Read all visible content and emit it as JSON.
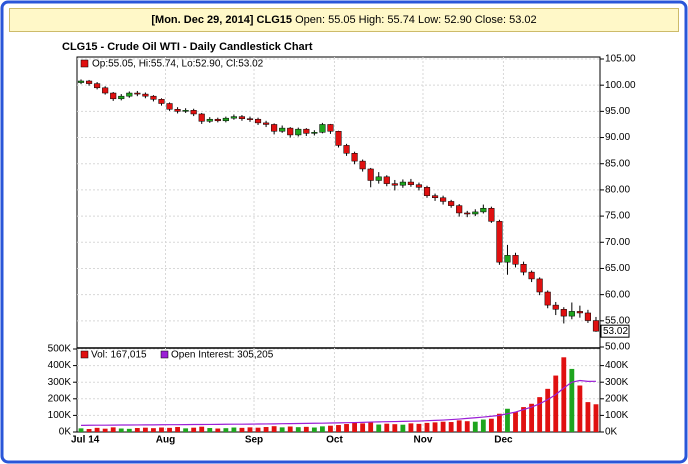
{
  "header": {
    "date": "[Mon. Dec 29, 2014]",
    "symbol": "CLG15",
    "quote": "Open: 55.05 High: 55.74 Low: 52.90 Close: 53.02"
  },
  "chart_data": [
    {
      "type": "candlestick",
      "title": "CLG15 - Crude Oil WTI - Daily Candlestick Chart",
      "legend": "Op:55.05, Hi:55.74, Lo:52.90, Cl:53.02",
      "up_color": "#1ea51e",
      "down_color": "#e01010",
      "grid": true,
      "categories": [
        "Jul 14",
        null,
        null,
        null,
        null,
        null,
        null,
        null,
        null,
        null,
        null,
        "Aug",
        null,
        null,
        null,
        null,
        null,
        null,
        null,
        null,
        null,
        null,
        "Sep",
        null,
        null,
        null,
        null,
        null,
        null,
        null,
        null,
        null,
        "Oct",
        null,
        null,
        null,
        null,
        null,
        null,
        null,
        null,
        null,
        null,
        "Nov",
        null,
        null,
        null,
        null,
        null,
        null,
        null,
        null,
        null,
        "Dec",
        null,
        null,
        null,
        null,
        null,
        null,
        null,
        null,
        null,
        null,
        null
      ],
      "open": [
        100.5,
        100.8,
        100.3,
        99.5,
        98.5,
        97.4,
        97.9,
        98.5,
        98.3,
        97.9,
        97.3,
        96.5,
        95.4,
        95.0,
        95.2,
        94.5,
        93.1,
        93.5,
        93.2,
        93.7,
        94.0,
        93.6,
        93.5,
        92.8,
        92.5,
        91.2,
        91.8,
        90.5,
        91.6,
        90.8,
        91.0,
        92.5,
        91.2,
        88.5,
        87.0,
        85.5,
        84.0,
        81.8,
        82.5,
        81.2,
        80.9,
        81.5,
        81.0,
        80.5,
        78.9,
        78.5,
        77.8,
        77.0,
        75.6,
        75.4,
        75.8,
        76.5,
        74.0,
        66.2,
        67.5,
        65.8,
        64.3,
        63.0,
        60.5,
        58.0,
        57.2,
        55.9,
        56.8,
        56.5,
        55.05
      ],
      "high": [
        101.1,
        101.0,
        100.6,
        99.8,
        98.7,
        98.3,
        98.8,
        98.9,
        98.6,
        98.1,
        97.5,
        96.7,
        95.8,
        95.6,
        95.5,
        94.7,
        93.9,
        93.8,
        94.0,
        94.4,
        94.3,
        94.0,
        93.8,
        93.2,
        92.7,
        92.3,
        92.0,
        91.9,
        91.8,
        91.4,
        92.8,
        92.6,
        91.3,
        88.8,
        87.3,
        85.8,
        84.2,
        83.4,
        82.8,
        81.9,
        82.0,
        82.1,
        81.4,
        80.8,
        79.3,
        78.9,
        78.1,
        77.3,
        76.0,
        76.3,
        77.2,
        76.8,
        74.3,
        69.5,
        68.0,
        66.3,
        64.6,
        63.3,
        60.8,
        58.6,
        57.6,
        58.5,
        57.9,
        57.1,
        55.74
      ],
      "low": [
        100.2,
        99.9,
        99.2,
        98.2,
        97.0,
        97.1,
        97.6,
        97.9,
        97.5,
        96.9,
        96.1,
        95.1,
        94.6,
        94.7,
        94.1,
        92.6,
        92.8,
        92.9,
        92.9,
        93.4,
        93.2,
        93.0,
        92.4,
        92.0,
        90.6,
        90.9,
        90.0,
        90.2,
        90.3,
        90.4,
        90.8,
        90.7,
        88.1,
        86.5,
        84.9,
        83.5,
        80.5,
        81.2,
        80.7,
        79.9,
        80.4,
        80.6,
        79.9,
        78.5,
        77.9,
        77.2,
        76.6,
        74.9,
        74.8,
        75.0,
        75.5,
        73.7,
        65.7,
        63.8,
        65.2,
        63.7,
        62.4,
        59.9,
        57.4,
        56.1,
        54.5,
        55.3,
        55.6,
        54.6,
        52.9
      ],
      "close": [
        100.8,
        100.3,
        99.5,
        98.5,
        97.4,
        97.9,
        98.5,
        98.3,
        97.9,
        97.3,
        96.5,
        95.4,
        95.0,
        95.2,
        94.5,
        93.1,
        93.5,
        93.2,
        93.7,
        94.0,
        93.6,
        93.5,
        92.8,
        92.5,
        91.2,
        91.8,
        90.5,
        91.6,
        90.8,
        91.0,
        92.5,
        91.2,
        88.5,
        87.0,
        85.5,
        84.0,
        81.8,
        82.5,
        81.2,
        80.9,
        81.5,
        81.0,
        80.5,
        78.9,
        78.5,
        77.8,
        77.0,
        75.6,
        75.4,
        75.8,
        76.5,
        74.0,
        66.2,
        67.5,
        65.8,
        64.3,
        63.0,
        60.5,
        58.0,
        57.2,
        55.9,
        56.8,
        56.5,
        55.05,
        53.02
      ],
      "last_price": {
        "value": 53.02,
        "label": "53.02"
      },
      "ylim": [
        50,
        105
      ],
      "yticks": [
        {
          "value": 50,
          "label": "50.00"
        },
        {
          "value": 55,
          "label": "55.00"
        },
        {
          "value": 60,
          "label": "60.00"
        },
        {
          "value": 65,
          "label": "65.00"
        },
        {
          "value": 70,
          "label": "70.00"
        },
        {
          "value": 75,
          "label": "75.00"
        },
        {
          "value": 80,
          "label": "80.00"
        },
        {
          "value": 85,
          "label": "85.00"
        },
        {
          "value": 90,
          "label": "90.00"
        },
        {
          "value": 95,
          "label": "95.00"
        },
        {
          "value": 100,
          "label": "100.00"
        },
        {
          "value": 105,
          "label": "105.00"
        }
      ]
    },
    {
      "type": "bar",
      "grid": true,
      "series": [
        {
          "name": "Vol: 167,015",
          "color": "#e01010",
          "values": [
            22000,
            18000,
            25000,
            20000,
            28000,
            21000,
            19000,
            24000,
            26000,
            23000,
            27000,
            25000,
            30000,
            22000,
            26000,
            32000,
            24000,
            21000,
            23000,
            27000,
            25000,
            28000,
            26000,
            30000,
            35000,
            28000,
            33000,
            29000,
            31000,
            27000,
            34000,
            38000,
            42000,
            48000,
            55000,
            52000,
            60000,
            45000,
            50000,
            47000,
            44000,
            52000,
            49000,
            55000,
            58000,
            62000,
            60000,
            70000,
            65000,
            62000,
            75000,
            80000,
            110000,
            140000,
            120000,
            150000,
            170000,
            210000,
            260000,
            340000,
            450000,
            380000,
            280000,
            180000,
            167015
          ]
        },
        {
          "name": "Open Interest: 305,205",
          "color": "#9b1fd6",
          "type": "line",
          "values": [
            40000,
            40500,
            41000,
            41000,
            41500,
            42000,
            42000,
            42500,
            43000,
            43000,
            43500,
            44000,
            44000,
            44500,
            45000,
            45000,
            45500,
            46000,
            46500,
            47000,
            47000,
            47500,
            48000,
            48500,
            49000,
            50000,
            50500,
            51000,
            52000,
            52500,
            53000,
            54000,
            55000,
            56000,
            57000,
            58000,
            60000,
            61000,
            62000,
            63000,
            64000,
            65000,
            66000,
            68000,
            70000,
            72000,
            75000,
            78000,
            82000,
            86000,
            90000,
            95000,
            100000,
            110000,
            120000,
            135000,
            150000,
            170000,
            195000,
            225000,
            265000,
            300000,
            310000,
            305000,
            305205
          ]
        }
      ],
      "ylim": [
        0,
        500000
      ],
      "yticks": [
        {
          "value": 0,
          "label": "0K"
        },
        {
          "value": 100000,
          "label": "100K"
        },
        {
          "value": 200000,
          "label": "200K"
        },
        {
          "value": 300000,
          "label": "300K"
        },
        {
          "value": 400000,
          "label": "400K"
        },
        {
          "value": 500000,
          "label": "500K"
        }
      ],
      "y2lim": [
        0,
        500000
      ],
      "y2ticks": [
        {
          "value": 0,
          "label": "0K"
        },
        {
          "value": 100000,
          "label": "100K"
        },
        {
          "value": 200000,
          "label": "200K"
        },
        {
          "value": 300000,
          "label": "300K"
        },
        {
          "value": 400000,
          "label": "400K"
        }
      ]
    }
  ]
}
